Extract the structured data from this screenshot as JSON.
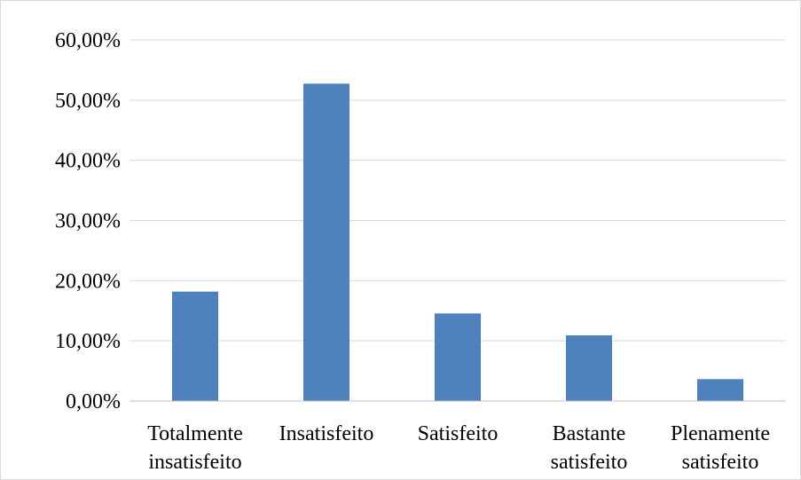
{
  "chart_data": {
    "type": "bar",
    "title": "",
    "xlabel": "",
    "ylabel": "",
    "categories": [
      [
        "Totalmente",
        "insatisfeito"
      ],
      [
        "Insatisfeito"
      ],
      [
        "Satisfeito"
      ],
      [
        "Bastante",
        "satisfeito"
      ],
      [
        "Plenamente",
        "satisfeito"
      ]
    ],
    "values": [
      18.18,
      52.73,
      14.55,
      10.91,
      3.64
    ],
    "ylim": [
      0,
      60
    ],
    "yticks": [
      0,
      10,
      20,
      30,
      40,
      50,
      60
    ],
    "ytick_labels": [
      "0,00%",
      "10,00%",
      "20,00%",
      "30,00%",
      "40,00%",
      "50,00%",
      "60,00%"
    ],
    "grid": true,
    "legend": "none",
    "colors": {
      "bar": "#4f81bd",
      "grid": "#d9d9d9",
      "axis": "#bfbfbf"
    }
  }
}
